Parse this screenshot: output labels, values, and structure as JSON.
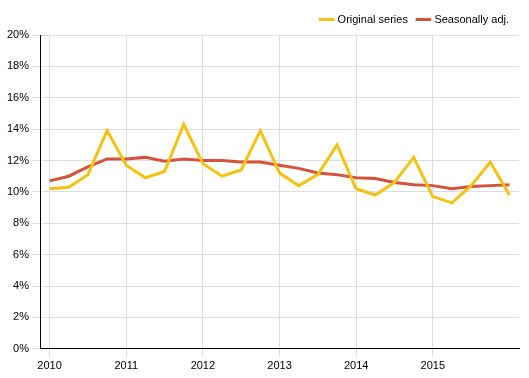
{
  "chart_data": {
    "type": "line",
    "categories": [
      "2010",
      null,
      null,
      null,
      "2011",
      null,
      null,
      null,
      "2012",
      null,
      null,
      null,
      "2013",
      null,
      null,
      null,
      "2014",
      null,
      null,
      null,
      "2015",
      null,
      null,
      null,
      null
    ],
    "series": [
      {
        "name": "Original series",
        "color": "#f5c211",
        "values": [
          10.2,
          10.3,
          11.1,
          13.9,
          11.7,
          10.9,
          11.3,
          14.3,
          11.8,
          11.0,
          11.4,
          13.9,
          11.2,
          10.4,
          11.1,
          13.0,
          10.2,
          9.8,
          10.6,
          12.2,
          9.7,
          9.3,
          10.4,
          11.9,
          9.8
        ]
      },
      {
        "name": "Seasonally adj.",
        "color": "#d4533a",
        "values": [
          10.7,
          11.0,
          11.6,
          12.1,
          12.1,
          12.2,
          11.95,
          12.1,
          12.0,
          12.0,
          11.9,
          11.9,
          11.7,
          11.5,
          11.2,
          11.1,
          10.9,
          10.85,
          10.6,
          10.45,
          10.4,
          10.2,
          10.35,
          10.4,
          10.45
        ]
      }
    ],
    "ylim": [
      0,
      20
    ],
    "yticks": [
      {
        "value": 0,
        "label": "0%"
      },
      {
        "value": 2,
        "label": "2%"
      },
      {
        "value": 4,
        "label": "4%"
      },
      {
        "value": 6,
        "label": "6%"
      },
      {
        "value": 8,
        "label": "8%"
      },
      {
        "value": 10,
        "label": "10%"
      },
      {
        "value": 12,
        "label": "12%"
      },
      {
        "value": 14,
        "label": "14%"
      },
      {
        "value": 16,
        "label": "16%"
      },
      {
        "value": 18,
        "label": "18%"
      },
      {
        "value": 20,
        "label": "20%"
      }
    ],
    "grid": true,
    "legend": "top-right"
  }
}
